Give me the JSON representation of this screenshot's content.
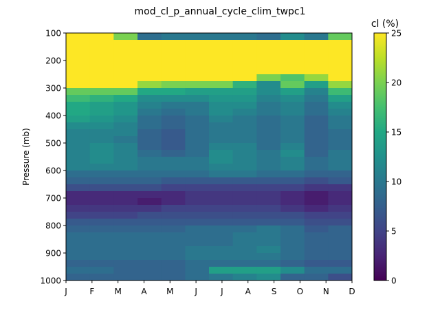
{
  "chart_data": {
    "type": "heatmap",
    "title": "mod_cl_p_annual_cycle_clim_twpc1",
    "ylabel": "Pressure (mb)",
    "xlabel": "",
    "x_labels": [
      "J",
      "F",
      "M",
      "A",
      "M",
      "J",
      "J",
      "A",
      "S",
      "O",
      "N",
      "D"
    ],
    "y_ticks": [
      100,
      200,
      300,
      400,
      500,
      600,
      700,
      800,
      900,
      1000
    ],
    "ylim": [
      1000,
      100
    ],
    "levels_mb": [
      100,
      125,
      150,
      175,
      200,
      225,
      250,
      275,
      300,
      325,
      350,
      375,
      400,
      425,
      450,
      475,
      500,
      525,
      550,
      575,
      600,
      625,
      650,
      675,
      700,
      725,
      750,
      775,
      800,
      825,
      850,
      875,
      900,
      925,
      950,
      975
    ],
    "level_step_mb": 25,
    "colorbar": {
      "label": "cl (%)",
      "ticks": [
        0,
        5,
        10,
        15,
        20,
        25
      ],
      "range": [
        0,
        25
      ],
      "colormap": "viridis"
    },
    "values": [
      [
        25,
        25,
        20,
        9,
        10,
        10,
        10,
        10,
        9,
        12,
        10,
        19
      ],
      [
        25,
        25,
        25,
        25,
        25,
        25,
        25,
        25,
        25,
        25,
        25,
        25
      ],
      [
        25,
        25,
        25,
        25,
        25,
        25,
        25,
        25,
        25,
        25,
        25,
        25
      ],
      [
        25,
        25,
        25,
        25,
        25,
        25,
        25,
        25,
        25,
        25,
        25,
        25
      ],
      [
        25,
        25,
        25,
        25,
        25,
        25,
        25,
        25,
        25,
        25,
        25,
        25
      ],
      [
        25,
        25,
        25,
        25,
        25,
        25,
        25,
        25,
        25,
        25,
        25,
        25
      ],
      [
        25,
        25,
        25,
        25,
        25,
        25,
        25,
        25,
        20,
        18,
        21,
        25
      ],
      [
        25,
        25,
        25,
        21,
        20,
        20,
        20,
        16,
        12,
        19,
        14,
        21
      ],
      [
        19,
        19,
        19,
        15,
        15,
        14,
        14,
        14,
        12,
        14,
        11,
        17
      ],
      [
        17,
        16,
        15,
        12,
        12,
        12,
        13,
        13,
        11,
        12,
        10,
        14
      ],
      [
        15,
        14,
        13,
        11,
        10,
        10,
        12,
        12,
        10,
        11,
        9,
        12
      ],
      [
        15,
        14,
        13,
        10,
        9,
        10,
        12,
        11,
        10,
        11,
        9,
        11
      ],
      [
        14,
        13,
        12,
        9,
        8,
        9,
        11,
        10,
        9,
        10,
        8,
        10
      ],
      [
        12,
        12,
        11,
        9,
        8,
        9,
        10,
        10,
        9,
        10,
        8,
        10
      ],
      [
        11,
        11,
        11,
        8,
        7,
        9,
        10,
        10,
        9,
        10,
        8,
        9
      ],
      [
        11,
        11,
        10,
        8,
        7,
        9,
        10,
        10,
        9,
        10,
        8,
        9
      ],
      [
        11,
        12,
        11,
        8,
        7,
        9,
        11,
        11,
        9,
        11,
        8,
        9
      ],
      [
        11,
        12,
        11,
        9,
        8,
        9,
        12,
        11,
        10,
        12,
        8,
        10
      ],
      [
        11,
        12,
        11,
        10,
        10,
        10,
        12,
        11,
        10,
        11,
        9,
        10
      ],
      [
        11,
        11,
        11,
        10,
        10,
        10,
        11,
        11,
        10,
        11,
        9,
        10
      ],
      [
        9,
        9,
        9,
        9,
        9,
        9,
        10,
        10,
        9,
        9,
        8,
        8
      ],
      [
        8,
        8,
        8,
        8,
        7,
        7,
        7,
        7,
        7,
        7,
        6,
        7
      ],
      [
        6,
        6,
        6,
        6,
        5,
        5,
        5,
        5,
        5,
        5,
        4,
        4
      ],
      [
        3,
        3,
        3,
        3,
        3,
        4,
        4,
        4,
        4,
        3,
        2,
        3
      ],
      [
        3,
        3,
        3,
        2,
        3,
        4,
        4,
        4,
        4,
        3,
        2,
        3
      ],
      [
        4,
        4,
        4,
        4,
        5,
        5,
        5,
        5,
        5,
        4,
        3,
        4
      ],
      [
        5,
        5,
        5,
        6,
        6,
        6,
        6,
        6,
        6,
        6,
        5,
        5
      ],
      [
        7,
        7,
        7,
        7,
        7,
        7,
        7,
        7,
        7,
        7,
        6,
        6
      ],
      [
        8,
        8,
        8,
        8,
        8,
        9,
        9,
        9,
        10,
        9,
        7,
        8
      ],
      [
        9,
        9,
        9,
        9,
        9,
        9,
        9,
        10,
        10,
        9,
        8,
        8
      ],
      [
        9,
        9,
        9,
        9,
        9,
        9,
        9,
        10,
        10,
        9,
        8,
        8
      ],
      [
        9,
        9,
        9,
        9,
        9,
        10,
        10,
        10,
        11,
        9,
        8,
        8
      ],
      [
        9,
        9,
        9,
        9,
        9,
        10,
        10,
        10,
        10,
        9,
        8,
        8
      ],
      [
        8,
        8,
        8,
        8,
        8,
        9,
        9,
        9,
        9,
        8,
        7,
        7
      ],
      [
        9,
        9,
        8,
        8,
        8,
        9,
        14,
        14,
        14,
        12,
        9,
        9
      ],
      [
        8,
        8,
        8,
        8,
        8,
        9,
        10,
        11,
        12,
        8,
        8,
        6
      ]
    ]
  }
}
